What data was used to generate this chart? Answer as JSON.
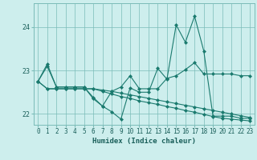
{
  "xlabel": "Humidex (Indice chaleur)",
  "background_color": "#cdeeed",
  "grid_color": "#7bbcb8",
  "line_color": "#1a7a6e",
  "xlim": [
    -0.5,
    23.5
  ],
  "ylim": [
    21.75,
    24.55
  ],
  "yticks": [
    22,
    23,
    24
  ],
  "xticks": [
    0,
    1,
    2,
    3,
    4,
    5,
    6,
    7,
    8,
    9,
    10,
    11,
    12,
    13,
    14,
    15,
    16,
    17,
    18,
    19,
    20,
    21,
    22,
    23
  ],
  "series": [
    [
      22.75,
      23.1,
      22.62,
      22.62,
      22.62,
      22.62,
      22.35,
      22.18,
      22.05,
      21.88,
      22.6,
      22.5,
      22.5,
      23.05,
      22.8,
      24.05,
      23.65,
      24.25,
      23.45,
      21.95,
      21.95,
      21.95,
      21.9,
      21.9
    ],
    [
      22.75,
      23.15,
      22.62,
      22.62,
      22.62,
      22.62,
      22.38,
      22.18,
      22.52,
      22.62,
      22.88,
      22.58,
      22.58,
      22.58,
      22.82,
      22.88,
      23.02,
      23.18,
      22.92,
      22.92,
      22.92,
      22.92,
      22.88,
      22.88
    ],
    [
      22.75,
      22.58,
      22.58,
      22.58,
      22.58,
      22.58,
      22.58,
      22.55,
      22.52,
      22.48,
      22.44,
      22.4,
      22.36,
      22.32,
      22.28,
      22.24,
      22.2,
      22.16,
      22.12,
      22.08,
      22.04,
      22.0,
      21.96,
      21.92
    ],
    [
      22.75,
      22.58,
      22.58,
      22.58,
      22.58,
      22.58,
      22.58,
      22.52,
      22.46,
      22.4,
      22.36,
      22.3,
      22.26,
      22.22,
      22.17,
      22.13,
      22.08,
      22.04,
      21.99,
      21.94,
      21.9,
      21.88,
      21.86,
      21.84
    ]
  ],
  "marker": "D",
  "markersize": 2.0,
  "linewidth": 0.8,
  "font_color": "#1a5f5a",
  "tick_fontsize": 5.5,
  "xlabel_fontsize": 6.5
}
